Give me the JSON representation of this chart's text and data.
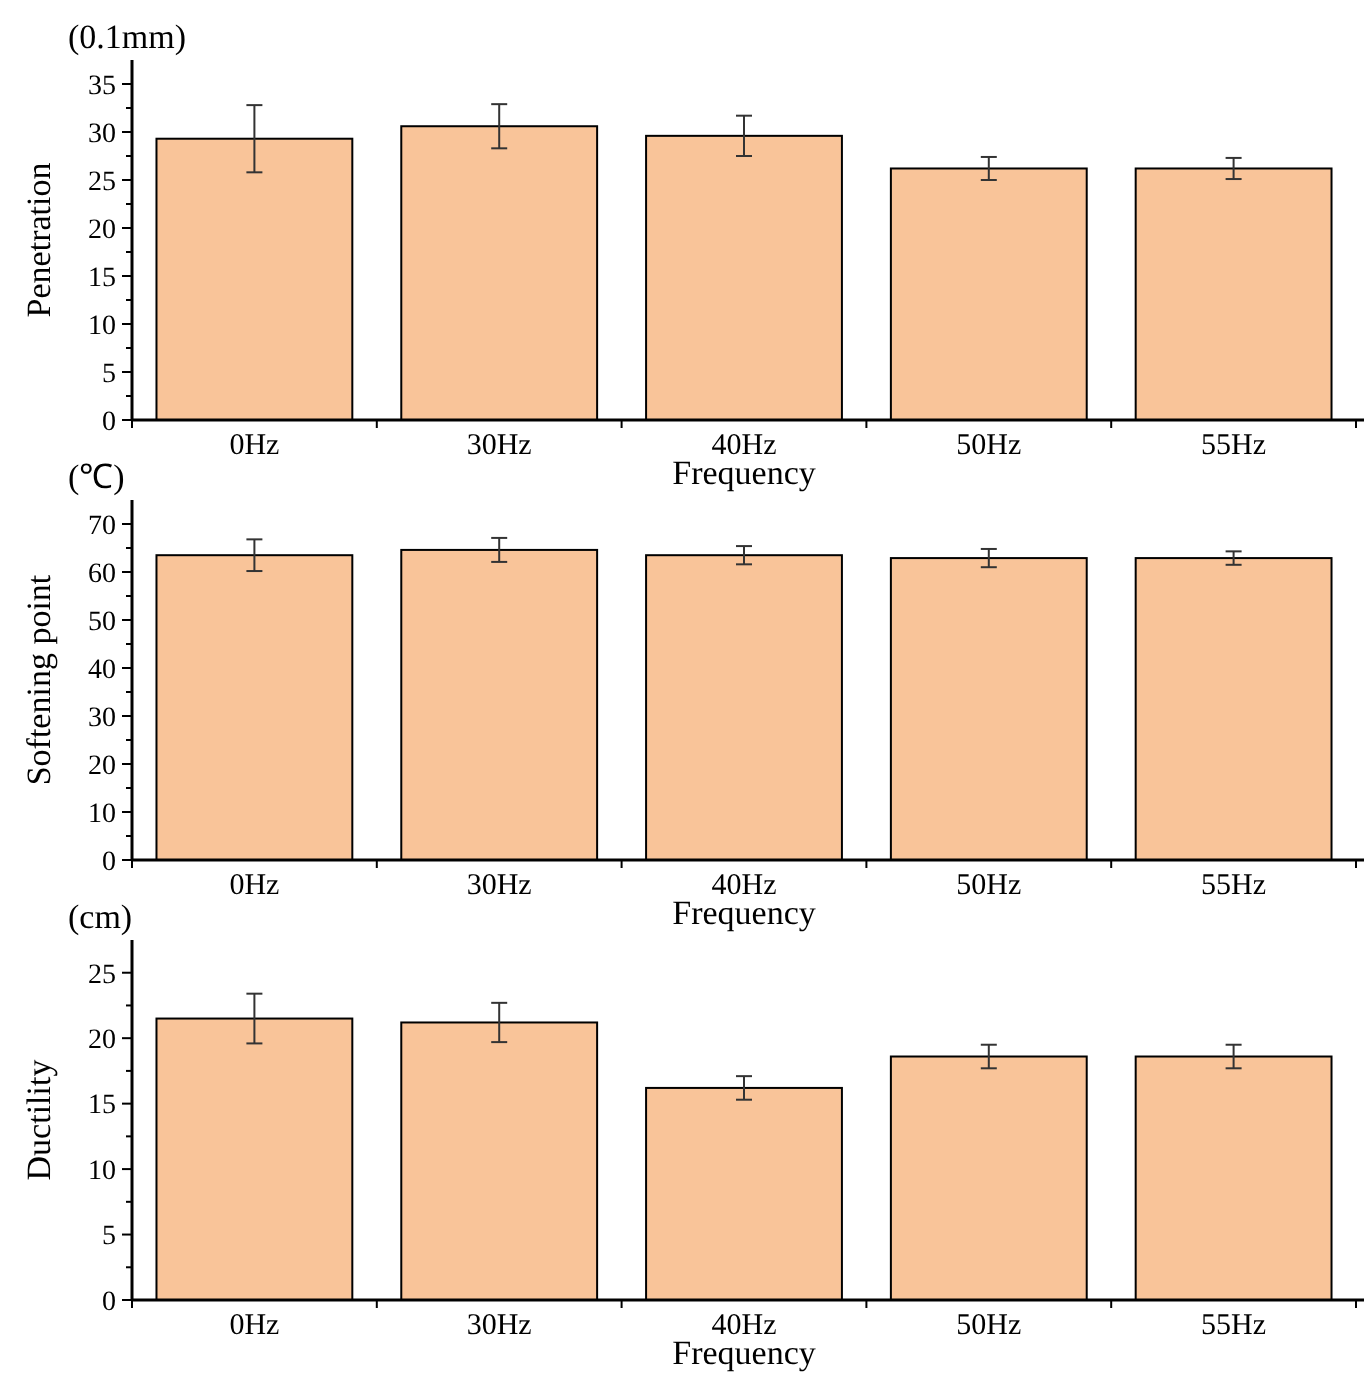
{
  "chart_data": [
    {
      "type": "bar",
      "categories": [
        "0Hz",
        "30Hz",
        "40Hz",
        "50Hz",
        "55Hz"
      ],
      "values": [
        29.3,
        30.6,
        29.6,
        26.2,
        26.2
      ],
      "errors": [
        3.5,
        2.3,
        2.1,
        1.2,
        1.1
      ],
      "color": "#f9c499",
      "xlabel": "Frequency",
      "ylabel": "Penetration",
      "annotations": [
        "(0.1mm)"
      ],
      "ylim": [
        0,
        37.5
      ],
      "yticks": [
        0,
        {
          "value": 2.5,
          "label": null
        },
        5,
        {
          "value": 7.5,
          "label": null
        },
        10,
        {
          "value": 12.5,
          "label": null
        },
        15,
        {
          "value": 17.5,
          "label": null
        },
        20,
        {
          "value": 22.5,
          "label": null
        },
        25,
        {
          "value": 27.5,
          "label": null
        },
        30,
        {
          "value": 32.5,
          "label": null
        },
        35
      ]
    },
    {
      "type": "bar",
      "categories": [
        "0Hz",
        "30Hz",
        "40Hz",
        "50Hz",
        "55Hz"
      ],
      "values": [
        63.5,
        64.6,
        63.5,
        62.9,
        62.9
      ],
      "errors": [
        3.3,
        2.5,
        1.9,
        1.9,
        1.4
      ],
      "color": "#f9c499",
      "xlabel": "Frequency",
      "ylabel": "Softening point",
      "annotations": [
        "(℃)"
      ],
      "ylim": [
        0,
        75
      ],
      "yticks": [
        0,
        {
          "value": 5,
          "label": null
        },
        10,
        {
          "value": 15,
          "label": null
        },
        20,
        {
          "value": 25,
          "label": null
        },
        30,
        {
          "value": 35,
          "label": null
        },
        40,
        {
          "value": 45,
          "label": null
        },
        50,
        {
          "value": 55,
          "label": null
        },
        60,
        {
          "value": 65,
          "label": null
        },
        70
      ]
    },
    {
      "type": "bar",
      "categories": [
        "0Hz",
        "30Hz",
        "40Hz",
        "50Hz",
        "55Hz"
      ],
      "values": [
        21.5,
        21.2,
        16.2,
        18.6,
        18.6
      ],
      "errors": [
        1.9,
        1.5,
        0.9,
        0.9,
        0.9
      ],
      "color": "#f9c499",
      "xlabel": "Frequency",
      "ylabel": "Ductility",
      "annotations": [
        "(cm)"
      ],
      "ylim": [
        0,
        27.5
      ],
      "yticks": [
        0,
        {
          "value": 2.5,
          "label": null
        },
        5,
        {
          "value": 7.5,
          "label": null
        },
        10,
        {
          "value": 12.5,
          "label": null
        },
        15,
        {
          "value": 17.5,
          "label": null
        },
        20,
        {
          "value": 22.5,
          "label": null
        },
        25
      ]
    }
  ]
}
